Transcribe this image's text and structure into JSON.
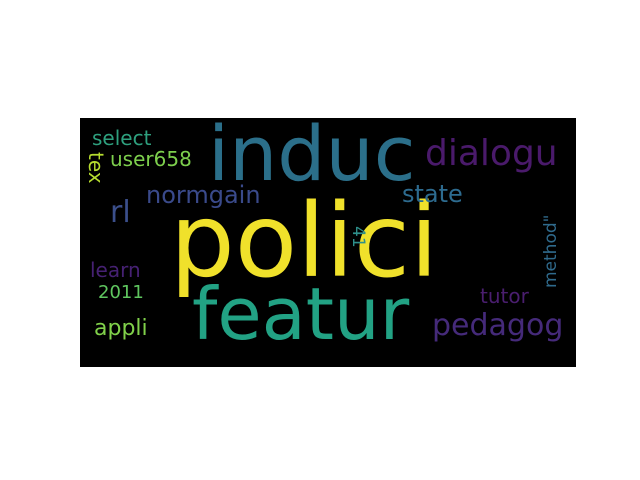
{
  "wordcloud": {
    "words": [
      {
        "text": "polici",
        "color": "#f0e12b"
      },
      {
        "text": "induc",
        "color": "#2b6f8a"
      },
      {
        "text": "featur",
        "color": "#22a284"
      },
      {
        "text": "dialogu",
        "color": "#4a1a6b"
      },
      {
        "text": "pedagog",
        "color": "#452a7a"
      },
      {
        "text": "normgain",
        "color": "#3a4a8b"
      },
      {
        "text": "state",
        "color": "#2d6b8f"
      },
      {
        "text": "rl",
        "color": "#3b4f8b"
      },
      {
        "text": "select",
        "color": "#2ea07e"
      },
      {
        "text": "user658",
        "color": "#7dcf4d"
      },
      {
        "text": "tex",
        "color": "#b5dc2f"
      },
      {
        "text": "learn",
        "color": "#462173"
      },
      {
        "text": "2011",
        "color": "#5fc65f"
      },
      {
        "text": "appli",
        "color": "#80d14a"
      },
      {
        "text": "tutor",
        "color": "#4a1e6f"
      },
      {
        "text": "method\"",
        "color": "#2f6a8c"
      },
      {
        "text": "41",
        "color": "#2e8f8a"
      }
    ]
  }
}
